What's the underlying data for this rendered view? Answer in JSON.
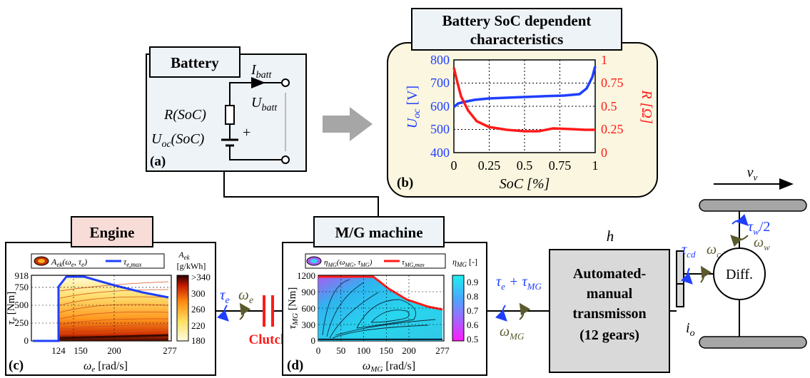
{
  "battery": {
    "title": "Battery",
    "panel": "(a)",
    "i_batt": "I",
    "i_batt_sub": "batt",
    "u_batt": "U",
    "u_batt_sub": "batt",
    "r_soc": "R(SoC)",
    "uoc_soc": "U",
    "uoc_sub": "oc",
    "uoc_tail": "(SoC)",
    "plus": "+"
  },
  "soc_box": {
    "title_line1": "Battery SoC dependent",
    "title_line2": "characteristics",
    "panel": "(b)",
    "xlabel": "SoC [%]",
    "ylabel_left": "U",
    "ylabel_left_sub": "oc",
    "ylabel_left_unit": " [V]",
    "ylabel_right": "R [Ω]",
    "x_ticks": [
      "0",
      "0.25",
      "0.5",
      "0.75",
      "1"
    ],
    "y_left_ticks": [
      "800",
      "700",
      "600",
      "500",
      "400"
    ],
    "y_right_ticks": [
      "1",
      "0.75",
      "0.5",
      "0.25",
      "0"
    ]
  },
  "engine": {
    "title": "Engine",
    "panel": "(c)",
    "legend_a": "A",
    "legend_a_sub": "ek",
    "legend_a_args": "(ω",
    "legend_a_args2": ", τ",
    "legend_a_args3": ")",
    "legend_t": "τ",
    "legend_t_sub": "e,max",
    "colorbar_title": "A",
    "colorbar_title_sub": "ek",
    "colorbar_unit": "[g/kWh]",
    "colorbar_ticks": [
      ">340",
      "300",
      "260",
      "220",
      "180"
    ],
    "y_ticks": [
      "918",
      "750",
      "500",
      "250",
      "0"
    ],
    "x_ticks": [
      "124",
      "150",
      "200",
      "277"
    ],
    "ylabel": "τ",
    "ylabel_sub": "e",
    "ylabel_unit": " [Nm]",
    "xlabel": "ω",
    "xlabel_sub": "e",
    "xlabel_unit": " [rad/s]"
  },
  "mg": {
    "title": "M/G machine",
    "panel": "(d)",
    "legend_eta": "η",
    "legend_eta_sub": "MG",
    "legend_eta_args": "(ω",
    "legend_eta_args_sub": "MG",
    "legend_eta_args2": ", τ",
    "legend_eta_args2_sub": "MG",
    "legend_eta_close": ")",
    "legend_t": "τ",
    "legend_t_sub": "MG,max",
    "colorbar_title": "η",
    "colorbar_title_sub": "MG",
    "colorbar_unit": " [-]",
    "colorbar_ticks": [
      "0.9",
      "0.8",
      "0.7",
      "0.6",
      "0.5"
    ],
    "y_ticks": [
      "1200",
      "900",
      "600",
      "300",
      "0"
    ],
    "x_ticks": [
      "0",
      "50",
      "100",
      "150",
      "200",
      "277"
    ],
    "ylabel": "τ",
    "ylabel_sub": "MG",
    "ylabel_unit": " [Nm]",
    "xlabel": "ω",
    "xlabel_sub": "MG",
    "xlabel_unit": " [rad/s]"
  },
  "links": {
    "tau_e": "τ",
    "tau_e_sub": "e",
    "omega_e": "ω",
    "omega_e_sub": "e",
    "clutch": "Clutch",
    "sum_tau": "τ",
    "sum_tau_sub1": "e",
    "sum_plus": " + τ",
    "sum_tau_sub2": "MG",
    "omega_mg": "ω",
    "omega_mg_sub": "MG"
  },
  "transmission": {
    "h": "h",
    "line1": "Automated-",
    "line2": "manual",
    "line3": "transmisson",
    "line4": "(12 gears)"
  },
  "drive": {
    "tau_cd": "τ",
    "tau_cd_sub": "cd",
    "omega_cd": "ω",
    "omega_cd_sub": "cd",
    "i_o": "i",
    "i_o_sub": "o",
    "diff": "Diff.",
    "v_v": "v",
    "v_v_sub": "v",
    "tau_w": "τ",
    "tau_w_sub": "w",
    "tau_w_tail": "/2",
    "omega_w": "ω",
    "omega_w_sub": "w"
  },
  "colors": {
    "blue": "#1f3fff",
    "red": "#ff1a1a",
    "olive": "#5a5a2e",
    "gray_box": "#d9d9d9",
    "panel_bg": "#eef3f8",
    "soc_bg": "#fbf6df",
    "engine_title_bg": "#f7dcd8",
    "mg_title_bg": "#eef3f8"
  }
}
